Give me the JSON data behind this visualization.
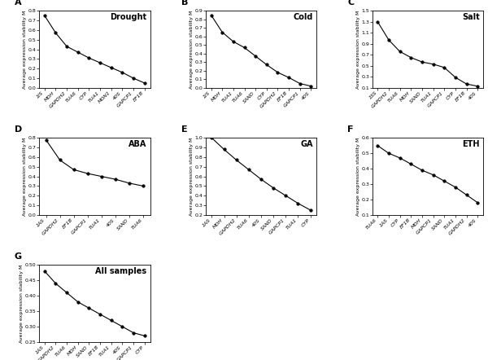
{
  "panels": [
    {
      "label": "A",
      "title": "Drought",
      "x_labels": [
        "1IS",
        "MDH",
        "GAPDH2",
        "TUA6",
        "CYP",
        "TUA1",
        "MON1",
        "40S",
        "GAPCP1",
        "EF1B"
      ],
      "y_values": [
        0.75,
        0.57,
        0.43,
        0.37,
        0.31,
        0.26,
        0.21,
        0.16,
        0.1,
        0.05
      ],
      "ylim": [
        0,
        0.8
      ],
      "yticks": [
        0,
        0.1,
        0.2,
        0.3,
        0.4,
        0.5,
        0.6,
        0.7,
        0.8
      ]
    },
    {
      "label": "B",
      "title": "Cold",
      "x_labels": [
        "1IS",
        "MDH",
        "TUA1",
        "TUA6",
        "SAND",
        "CYP",
        "GAPDH2",
        "EF1B",
        "GAPCP1",
        "40S"
      ],
      "y_values": [
        0.85,
        0.65,
        0.54,
        0.47,
        0.37,
        0.27,
        0.18,
        0.12,
        0.05,
        0.02
      ],
      "ylim": [
        0,
        0.9
      ],
      "yticks": [
        0,
        0.1,
        0.2,
        0.3,
        0.4,
        0.5,
        0.6,
        0.7,
        0.8,
        0.9
      ]
    },
    {
      "label": "C",
      "title": "Salt",
      "x_labels": [
        "1SS",
        "GAPDH2",
        "TUA6",
        "MDH",
        "SAND",
        "TUA1",
        "GAPCP1",
        "CYP",
        "EF1B",
        "40S"
      ],
      "y_values": [
        1.3,
        0.97,
        0.76,
        0.65,
        0.57,
        0.53,
        0.47,
        0.29,
        0.17,
        0.13
      ],
      "ylim": [
        0.1,
        1.5
      ],
      "yticks": [
        0.1,
        0.3,
        0.5,
        0.7,
        0.9,
        1.1,
        1.3,
        1.5
      ]
    },
    {
      "label": "D",
      "title": "ABA",
      "x_labels": [
        "1AS",
        "GAPDH2",
        "EF1B",
        "GAPCP1",
        "TUA1",
        "40S",
        "SAND",
        "TUA6"
      ],
      "y_values": [
        0.78,
        0.57,
        0.47,
        0.43,
        0.4,
        0.37,
        0.33,
        0.3
      ],
      "ylim": [
        0,
        0.8
      ],
      "yticks": [
        0,
        0.1,
        0.2,
        0.3,
        0.4,
        0.5,
        0.6,
        0.7,
        0.8
      ]
    },
    {
      "label": "E",
      "title": "GA",
      "x_labels": [
        "1AS",
        "MDH",
        "GAPDH2",
        "TUA6",
        "40S",
        "SAND",
        "GAPCP1",
        "TUA1",
        "CYP"
      ],
      "y_values": [
        1.0,
        0.88,
        0.77,
        0.67,
        0.57,
        0.48,
        0.4,
        0.32,
        0.25
      ],
      "ylim": [
        0.2,
        1.0
      ],
      "yticks": [
        0.2,
        0.3,
        0.4,
        0.5,
        0.6,
        0.7,
        0.8,
        0.9,
        1.0
      ]
    },
    {
      "label": "F",
      "title": "ETH",
      "x_labels": [
        "TUA6",
        "1AS",
        "CYP",
        "EF1B",
        "MDH",
        "GAPCP1",
        "SAND",
        "TUA1",
        "GAPDH2",
        "40S"
      ],
      "y_values": [
        0.55,
        0.5,
        0.47,
        0.43,
        0.39,
        0.36,
        0.32,
        0.28,
        0.23,
        0.18
      ],
      "ylim": [
        0.1,
        0.6
      ],
      "yticks": [
        0.1,
        0.2,
        0.3,
        0.4,
        0.5,
        0.6
      ]
    },
    {
      "label": "G",
      "title": "All samples",
      "x_labels": [
        "1AS",
        "GAPDH2",
        "TUA6",
        "MDH",
        "SAND",
        "EF1B",
        "TUA1",
        "40S",
        "GAPCP1",
        "CYP"
      ],
      "y_values": [
        0.48,
        0.44,
        0.41,
        0.38,
        0.36,
        0.34,
        0.32,
        0.3,
        0.28,
        0.27
      ],
      "ylim": [
        0.25,
        0.5
      ],
      "yticks": [
        0.25,
        0.3,
        0.35,
        0.4,
        0.45,
        0.5
      ]
    }
  ],
  "ylabel": "Average expression stability M",
  "line_color": "black",
  "marker": "o",
  "markersize": 2.5,
  "linewidth": 0.8,
  "tick_fontsize": 4.5,
  "label_fontsize": 4.5,
  "title_fontsize": 7,
  "panel_label_fontsize": 8
}
